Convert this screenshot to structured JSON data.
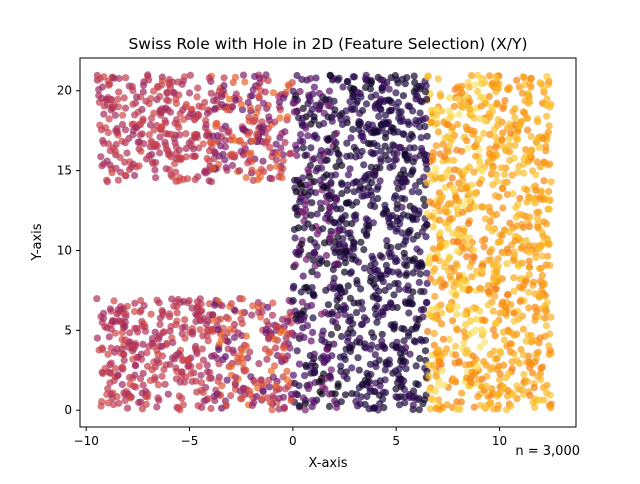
{
  "chart_data": {
    "type": "scatter",
    "title": "Swiss Role with Hole in 2D (Feature Selection) (X/Y)",
    "xlabel": "X-axis",
    "ylabel": "Y-axis",
    "xlim": [
      -10.3,
      13.7
    ],
    "ylim": [
      -1.05,
      22.05
    ],
    "xticks": [
      -10,
      -5,
      0,
      5,
      10
    ],
    "yticks": [
      0,
      5,
      10,
      15,
      20
    ],
    "annotation": "n = 3,000",
    "n_points": 3000,
    "colormap": "inferno",
    "marker_alpha": 0.7,
    "grid": false,
    "legend": "none",
    "regions": [
      {
        "x": [
          -9.5,
          -4.0
        ],
        "y": [
          0,
          7
        ],
        "color_range": [
          0.42,
          0.58
        ]
      },
      {
        "x": [
          -9.5,
          -4.0
        ],
        "y": [
          14.3,
          21
        ],
        "color_range": [
          0.42,
          0.58
        ]
      },
      {
        "x": [
          -4.0,
          0.0
        ],
        "y": [
          0,
          7
        ],
        "color_range": [
          0.28,
          0.68
        ]
      },
      {
        "x": [
          -4.0,
          0.0
        ],
        "y": [
          14.3,
          21
        ],
        "color_range": [
          0.28,
          0.68
        ]
      },
      {
        "x": [
          0.0,
          2.2
        ],
        "y": [
          0,
          21
        ],
        "color_range": [
          0.0,
          0.35
        ]
      },
      {
        "x": [
          2.2,
          6.5
        ],
        "y": [
          0,
          21
        ],
        "color_range": [
          0.05,
          0.2
        ]
      },
      {
        "x": [
          6.5,
          9.5
        ],
        "y": [
          0,
          21
        ],
        "color_range": [
          0.7,
          0.95
        ]
      },
      {
        "x": [
          9.5,
          12.5
        ],
        "y": [
          0,
          21
        ],
        "color_range": [
          0.72,
          0.88
        ]
      }
    ],
    "hole": {
      "x": [
        -9.5,
        0.0
      ],
      "y": [
        7,
        14.3
      ]
    }
  }
}
